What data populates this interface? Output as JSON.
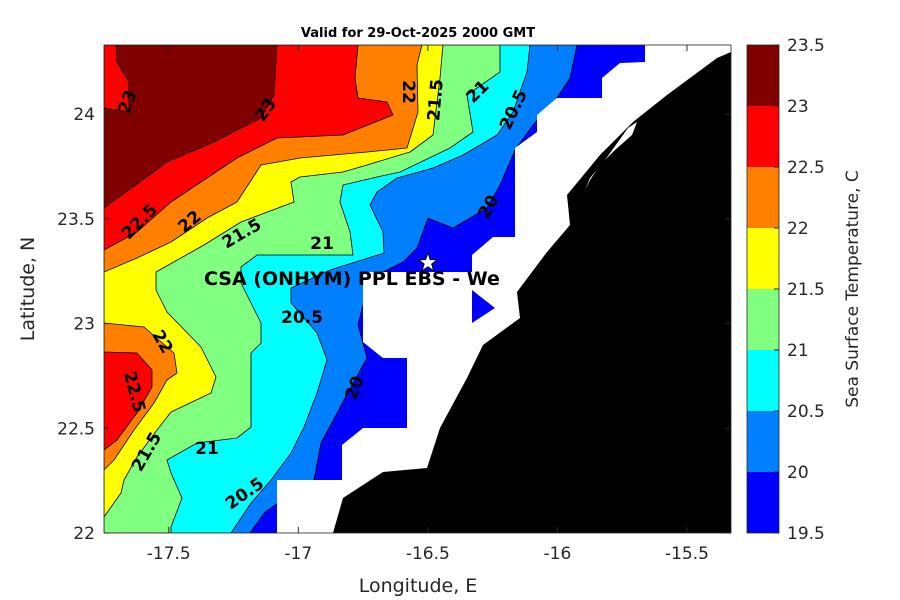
{
  "chart_data": {
    "type": "heatmap",
    "subtype": "filled-contour map",
    "title": "Valid for 29-Oct-2025 2000 GMT",
    "xlabel": "Longitude, E",
    "ylabel": "Latitude, N",
    "xlim": [
      -17.75,
      -15.33
    ],
    "ylim": [
      22,
      24.33
    ],
    "xticks": [
      -17.5,
      -17,
      -16.5,
      -16,
      -15.5
    ],
    "xtick_labels": [
      "-17.5",
      "-17",
      "-16.5",
      "-16",
      "-15.5"
    ],
    "yticks": [
      22,
      22.5,
      23,
      23.5,
      24
    ],
    "ytick_labels": [
      "22",
      "22.5",
      "23",
      "23.5",
      "24"
    ],
    "colorbar": {
      "label": "Sea Surface Temperature, C",
      "levels": [
        19.5,
        20,
        20.5,
        21,
        21.5,
        22,
        22.5,
        23,
        23.5
      ],
      "tick_labels": [
        "19.5",
        "20",
        "20.5",
        "21",
        "21.5",
        "22",
        "22.5",
        "23",
        "23.5"
      ],
      "colors": [
        "#0000FF",
        "#0080FF",
        "#00FFFF",
        "#80FF80",
        "#FFFF00",
        "#FF8000",
        "#FF0000",
        "#800000"
      ]
    },
    "contour_labels": [
      "23",
      "23",
      "22.5",
      "22",
      "21.5",
      "21",
      "20.5",
      "22",
      "21.5",
      "21",
      "20.5",
      "20",
      "20",
      "22",
      "22.5",
      "21.5",
      "21",
      "20.5"
    ],
    "land_color": "#000000",
    "missing_color": "#FFFFFF",
    "site": {
      "label": "CSA (ONHYM) PPL EBS  - We",
      "lon": -16.5,
      "lat": 23.29,
      "marker": "star-icon"
    }
  }
}
